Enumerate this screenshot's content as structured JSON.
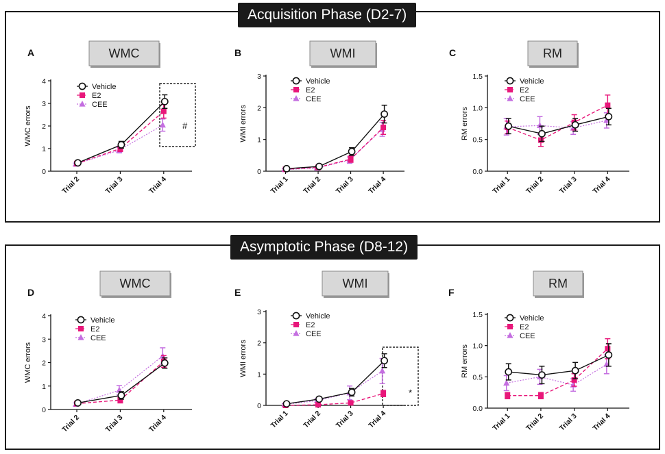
{
  "phases": {
    "top": "Acquisition Phase (D2-7)",
    "bottom": "Asymptotic Phase (D8-12)"
  },
  "colors": {
    "vehicle": "#111111",
    "e2": "#e8177a",
    "cee": "#c46ee0",
    "box": "#d0d0d0"
  },
  "chart_data": [
    {
      "id": "A",
      "box_label": "WMC",
      "type": "line",
      "categories": [
        "Trial 2",
        "Trial 3",
        "Trial 4"
      ],
      "ylabel": "WMC errors",
      "ylim": [
        0,
        4
      ],
      "yticks": [
        "0",
        "1",
        "2",
        "3",
        "4"
      ],
      "legend": [
        "Vehicle",
        "E2",
        "CEE"
      ],
      "series": [
        {
          "name": "Vehicle",
          "values": [
            0.37,
            1.17,
            3.08
          ],
          "errors": [
            0.05,
            0.15,
            0.3
          ]
        },
        {
          "name": "E2",
          "values": [
            0.34,
            1.0,
            2.65
          ],
          "errors": [
            0.05,
            0.13,
            0.3
          ]
        },
        {
          "name": "CEE",
          "values": [
            0.31,
            0.93,
            2.04
          ],
          "errors": [
            0.05,
            0.12,
            0.27
          ]
        }
      ],
      "annotation": "#"
    },
    {
      "id": "B",
      "box_label": "WMI",
      "type": "line",
      "categories": [
        "Trial 1",
        "Trial 2",
        "Trial 3",
        "Trial 4"
      ],
      "ylabel": "WMI errors",
      "ylim": [
        0,
        3
      ],
      "yticks": [
        "0",
        "1",
        "2",
        "3"
      ],
      "legend": [
        "Vehicle",
        "E2",
        "CEE"
      ],
      "series": [
        {
          "name": "Vehicle",
          "values": [
            0.08,
            0.15,
            0.62,
            1.8
          ],
          "errors": [
            0.03,
            0.04,
            0.12,
            0.28
          ]
        },
        {
          "name": "E2",
          "values": [
            0.06,
            0.12,
            0.38,
            1.38
          ],
          "errors": [
            0.03,
            0.04,
            0.1,
            0.22
          ]
        },
        {
          "name": "CEE",
          "values": [
            0.05,
            0.1,
            0.35,
            1.32
          ],
          "errors": [
            0.03,
            0.04,
            0.1,
            0.22
          ]
        }
      ]
    },
    {
      "id": "C",
      "box_label": "RM",
      "type": "line",
      "categories": [
        "Trial 1",
        "Trial 2",
        "Trial 3",
        "Trial 4"
      ],
      "ylabel": "RM errors",
      "ylim": [
        0,
        1.5
      ],
      "yticks": [
        "0.0",
        "0.5",
        "1.0",
        "1.5"
      ],
      "legend": [
        "Vehicle",
        "E2",
        "CEE"
      ],
      "series": [
        {
          "name": "Vehicle",
          "values": [
            0.71,
            0.59,
            0.73,
            0.86
          ],
          "errors": [
            0.12,
            0.12,
            0.1,
            0.13
          ]
        },
        {
          "name": "E2",
          "values": [
            0.69,
            0.49,
            0.77,
            1.04
          ],
          "errors": [
            0.1,
            0.1,
            0.12,
            0.16
          ]
        },
        {
          "name": "CEE",
          "values": [
            0.7,
            0.72,
            0.68,
            0.8
          ],
          "errors": [
            0.13,
            0.14,
            0.1,
            0.12
          ]
        }
      ]
    },
    {
      "id": "D",
      "box_label": "WMC",
      "type": "line",
      "categories": [
        "Trial 2",
        "Trial 3",
        "Trial 4"
      ],
      "ylabel": "WMC errors",
      "ylim": [
        0,
        4
      ],
      "yticks": [
        "0",
        "1",
        "2",
        "3",
        "4"
      ],
      "legend": [
        "Vehicle",
        "E2",
        "CEE"
      ],
      "series": [
        {
          "name": "Vehicle",
          "values": [
            0.28,
            0.6,
            1.98
          ],
          "errors": [
            0.06,
            0.16,
            0.22
          ]
        },
        {
          "name": "E2",
          "values": [
            0.25,
            0.4,
            2.05
          ],
          "errors": [
            0.06,
            0.12,
            0.25
          ]
        },
        {
          "name": "CEE",
          "values": [
            0.22,
            0.82,
            2.28
          ],
          "errors": [
            0.06,
            0.2,
            0.35
          ]
        }
      ]
    },
    {
      "id": "E",
      "box_label": "WMI",
      "type": "line",
      "categories": [
        "Trial 1",
        "Trial 2",
        "Trial 3",
        "Trial 4"
      ],
      "ylabel": "WMI errors",
      "ylim": [
        0,
        3
      ],
      "yticks": [
        "0",
        "1",
        "2",
        "3"
      ],
      "legend": [
        "Vehicle",
        "E2",
        "CEE"
      ],
      "series": [
        {
          "name": "Vehicle",
          "values": [
            0.05,
            0.2,
            0.42,
            1.43
          ],
          "errors": [
            0.03,
            0.06,
            0.12,
            0.22
          ]
        },
        {
          "name": "E2",
          "values": [
            0.0,
            0.02,
            0.08,
            0.38
          ],
          "errors": [
            0.02,
            0.02,
            0.04,
            0.1
          ]
        },
        {
          "name": "CEE",
          "values": [
            0.03,
            0.15,
            0.4,
            1.1
          ],
          "errors": [
            0.03,
            0.06,
            0.22,
            0.4
          ]
        }
      ],
      "annotation": "*"
    },
    {
      "id": "F",
      "box_label": "RM",
      "type": "line",
      "categories": [
        "Trial 1",
        "Trial 2",
        "Trial 3",
        "Trial 4"
      ],
      "ylabel": "RM errors",
      "ylim": [
        0,
        1.5
      ],
      "yticks": [
        "0.0",
        "0.5",
        "1.0",
        "1.5"
      ],
      "legend": [
        "Vehicle",
        "E2",
        "CEE"
      ],
      "series": [
        {
          "name": "Vehicle",
          "values": [
            0.58,
            0.53,
            0.6,
            0.85
          ],
          "errors": [
            0.13,
            0.14,
            0.13,
            0.18
          ]
        },
        {
          "name": "E2",
          "values": [
            0.2,
            0.2,
            0.45,
            0.95
          ],
          "errors": [
            0.05,
            0.05,
            0.1,
            0.16
          ]
        },
        {
          "name": "CEE",
          "values": [
            0.4,
            0.5,
            0.37,
            0.7
          ],
          "errors": [
            0.12,
            0.12,
            0.1,
            0.15
          ]
        }
      ]
    }
  ]
}
